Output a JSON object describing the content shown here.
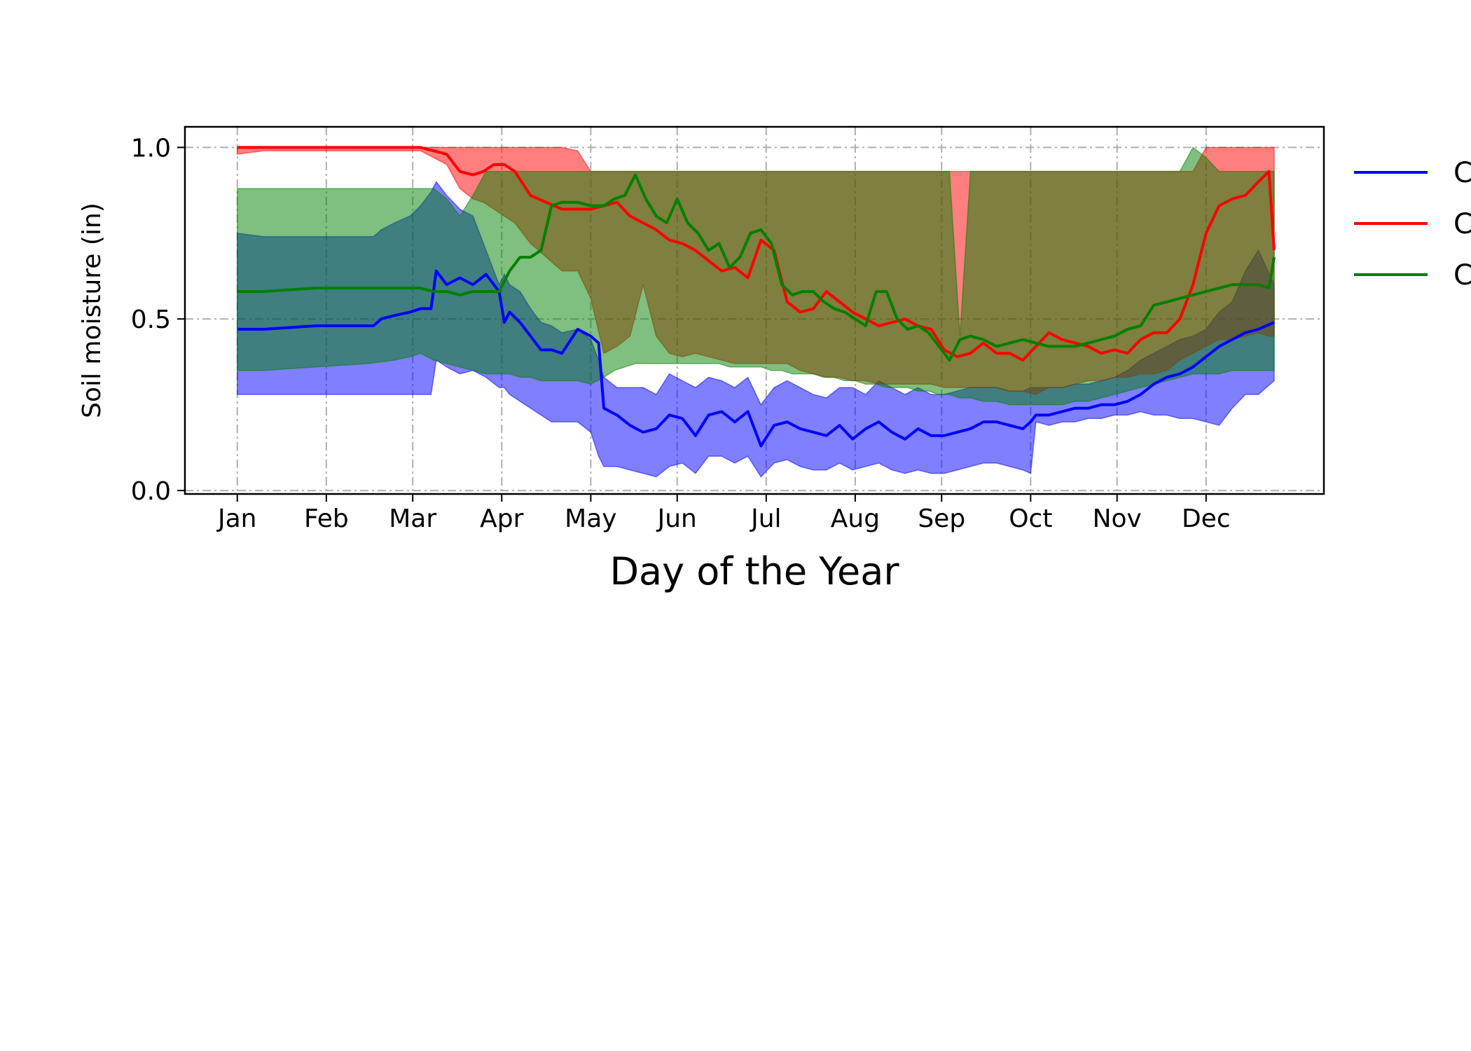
{
  "chart_data": {
    "type": "area",
    "title": "",
    "xlabel": "Day of the Year",
    "ylabel": "Soil moisture (in)",
    "xlim": [
      -20,
      415
    ],
    "ylim": [
      -0.01,
      1.06
    ],
    "grid": true,
    "legend_position": "right, partially cropped",
    "y_ticks": [
      0.0,
      0.5,
      1.0
    ],
    "y_tick_labels": [
      "0.0",
      "0.5",
      "1.0"
    ],
    "x_tick_days": [
      0,
      34,
      67,
      101,
      135,
      168,
      202,
      236,
      269,
      303,
      336,
      370
    ],
    "x_tick_labels": [
      "Jan",
      "Feb",
      "Mar",
      "Apr",
      "May",
      "Jun",
      "Jul",
      "Aug",
      "Sep",
      "Oct",
      "Nov",
      "Dec"
    ],
    "series": [
      {
        "name": "C",
        "color": "#0000ff",
        "x": [
          0,
          10,
          30,
          50,
          52,
          55,
          60,
          66,
          70,
          74,
          76,
          80,
          85,
          90,
          95,
          100,
          102,
          104,
          108,
          112,
          116,
          120,
          124,
          130,
          135,
          138,
          140,
          145,
          150,
          155,
          160,
          165,
          170,
          175,
          180,
          185,
          190,
          195,
          200,
          205,
          210,
          215,
          220,
          225,
          230,
          235,
          240,
          245,
          250,
          255,
          260,
          265,
          270,
          275,
          280,
          285,
          290,
          295,
          300,
          303,
          305,
          310,
          315,
          320,
          325,
          330,
          335,
          340,
          345,
          350,
          355,
          360,
          365,
          370,
          375,
          380,
          385,
          390,
          396
        ],
        "mean": [
          0.47,
          0.47,
          0.48,
          0.48,
          0.48,
          0.5,
          0.51,
          0.52,
          0.53,
          0.53,
          0.64,
          0.6,
          0.62,
          0.6,
          0.63,
          0.58,
          0.49,
          0.52,
          0.49,
          0.45,
          0.41,
          0.41,
          0.4,
          0.47,
          0.45,
          0.43,
          0.24,
          0.22,
          0.19,
          0.17,
          0.18,
          0.22,
          0.21,
          0.16,
          0.22,
          0.23,
          0.2,
          0.23,
          0.13,
          0.19,
          0.2,
          0.18,
          0.17,
          0.16,
          0.19,
          0.15,
          0.18,
          0.2,
          0.17,
          0.15,
          0.18,
          0.16,
          0.16,
          0.17,
          0.18,
          0.2,
          0.2,
          0.19,
          0.18,
          0.2,
          0.22,
          0.22,
          0.23,
          0.24,
          0.24,
          0.25,
          0.25,
          0.26,
          0.28,
          0.31,
          0.33,
          0.34,
          0.36,
          0.39,
          0.42,
          0.44,
          0.46,
          0.47,
          0.49
        ],
        "upper": [
          0.75,
          0.74,
          0.74,
          0.74,
          0.74,
          0.76,
          0.78,
          0.8,
          0.83,
          0.87,
          0.9,
          0.86,
          0.82,
          0.8,
          0.7,
          0.6,
          0.63,
          0.6,
          0.58,
          0.53,
          0.49,
          0.48,
          0.46,
          0.47,
          0.44,
          0.38,
          0.33,
          0.3,
          0.3,
          0.3,
          0.28,
          0.34,
          0.32,
          0.3,
          0.33,
          0.32,
          0.3,
          0.33,
          0.25,
          0.3,
          0.32,
          0.3,
          0.28,
          0.27,
          0.3,
          0.3,
          0.28,
          0.32,
          0.3,
          0.28,
          0.3,
          0.28,
          0.28,
          0.29,
          0.3,
          0.3,
          0.3,
          0.29,
          0.29,
          0.3,
          0.3,
          0.3,
          0.3,
          0.31,
          0.31,
          0.32,
          0.33,
          0.35,
          0.38,
          0.4,
          0.42,
          0.44,
          0.45,
          0.47,
          0.52,
          0.55,
          0.64,
          0.7,
          0.6
        ],
        "lower": [
          0.28,
          0.28,
          0.28,
          0.28,
          0.28,
          0.28,
          0.28,
          0.28,
          0.28,
          0.28,
          0.38,
          0.36,
          0.34,
          0.35,
          0.33,
          0.3,
          0.3,
          0.28,
          0.26,
          0.24,
          0.22,
          0.2,
          0.2,
          0.2,
          0.17,
          0.1,
          0.07,
          0.07,
          0.06,
          0.05,
          0.04,
          0.07,
          0.08,
          0.05,
          0.1,
          0.1,
          0.08,
          0.1,
          0.04,
          0.08,
          0.09,
          0.07,
          0.06,
          0.06,
          0.08,
          0.06,
          0.07,
          0.08,
          0.06,
          0.05,
          0.06,
          0.05,
          0.05,
          0.06,
          0.07,
          0.08,
          0.08,
          0.07,
          0.06,
          0.05,
          0.2,
          0.19,
          0.2,
          0.2,
          0.21,
          0.21,
          0.22,
          0.22,
          0.23,
          0.22,
          0.22,
          0.21,
          0.21,
          0.2,
          0.19,
          0.24,
          0.28,
          0.28,
          0.32
        ]
      },
      {
        "name": "C",
        "color": "#ff0000",
        "x": [
          0,
          10,
          30,
          50,
          70,
          80,
          85,
          90,
          94,
          98,
          102,
          106,
          112,
          118,
          124,
          130,
          135,
          140,
          145,
          150,
          155,
          160,
          165,
          170,
          175,
          180,
          185,
          190,
          195,
          200,
          205,
          210,
          215,
          220,
          225,
          230,
          235,
          240,
          245,
          250,
          255,
          260,
          265,
          270,
          275,
          280,
          285,
          290,
          295,
          300,
          305,
          310,
          315,
          320,
          325,
          330,
          335,
          340,
          345,
          350,
          355,
          360,
          365,
          370,
          375,
          380,
          385,
          390,
          394,
          396
        ],
        "mean": [
          1.0,
          1.0,
          1.0,
          1.0,
          1.0,
          0.98,
          0.93,
          0.92,
          0.93,
          0.95,
          0.95,
          0.93,
          0.86,
          0.84,
          0.82,
          0.82,
          0.82,
          0.83,
          0.84,
          0.8,
          0.78,
          0.76,
          0.73,
          0.72,
          0.7,
          0.67,
          0.64,
          0.65,
          0.62,
          0.73,
          0.7,
          0.55,
          0.52,
          0.53,
          0.58,
          0.55,
          0.52,
          0.5,
          0.48,
          0.49,
          0.5,
          0.48,
          0.47,
          0.41,
          0.39,
          0.4,
          0.43,
          0.4,
          0.4,
          0.38,
          0.42,
          0.46,
          0.44,
          0.43,
          0.42,
          0.4,
          0.41,
          0.4,
          0.44,
          0.46,
          0.46,
          0.5,
          0.6,
          0.75,
          0.83,
          0.85,
          0.86,
          0.9,
          0.93,
          0.7
        ],
        "upper": [
          1.0,
          1.0,
          1.0,
          1.0,
          1.0,
          1.0,
          1.0,
          1.0,
          1.0,
          1.0,
          1.0,
          1.0,
          1.0,
          1.0,
          1.0,
          0.99,
          0.93,
          0.93,
          0.93,
          0.93,
          0.93,
          0.93,
          0.93,
          0.93,
          0.93,
          0.93,
          0.93,
          0.93,
          0.93,
          0.93,
          0.93,
          0.93,
          0.93,
          0.93,
          0.93,
          0.93,
          0.93,
          0.93,
          0.93,
          0.93,
          0.93,
          0.93,
          0.93,
          0.93,
          0.93,
          0.93,
          0.93,
          0.93,
          0.93,
          0.93,
          0.93,
          0.93,
          0.93,
          0.93,
          0.93,
          0.93,
          0.93,
          0.93,
          0.93,
          0.93,
          0.93,
          0.93,
          0.93,
          1.0,
          1.0,
          1.0,
          1.0,
          1.0,
          1.0,
          1.0
        ],
        "lower": [
          0.98,
          0.99,
          0.99,
          0.99,
          0.99,
          0.95,
          0.88,
          0.85,
          0.84,
          0.82,
          0.8,
          0.78,
          0.72,
          0.68,
          0.64,
          0.64,
          0.56,
          0.4,
          0.42,
          0.45,
          0.6,
          0.45,
          0.4,
          0.39,
          0.4,
          0.39,
          0.38,
          0.37,
          0.37,
          0.37,
          0.37,
          0.37,
          0.35,
          0.34,
          0.33,
          0.33,
          0.32,
          0.32,
          0.31,
          0.31,
          0.31,
          0.31,
          0.31,
          0.3,
          0.3,
          0.3,
          0.3,
          0.3,
          0.29,
          0.29,
          0.28,
          0.3,
          0.3,
          0.31,
          0.32,
          0.32,
          0.33,
          0.33,
          0.34,
          0.34,
          0.35,
          0.38,
          0.4,
          0.42,
          0.44,
          0.44,
          0.45,
          0.46,
          0.45,
          0.45
        ]
      },
      {
        "name": "C",
        "color": "#008000",
        "x": [
          0,
          10,
          30,
          50,
          60,
          66,
          70,
          75,
          80,
          85,
          90,
          95,
          100,
          104,
          108,
          112,
          116,
          120,
          124,
          130,
          135,
          140,
          144,
          148,
          152,
          156,
          160,
          164,
          168,
          172,
          176,
          180,
          184,
          188,
          192,
          196,
          200,
          204,
          208,
          212,
          216,
          220,
          224,
          228,
          232,
          236,
          240,
          244,
          248,
          252,
          256,
          260,
          264,
          268,
          272,
          276,
          280,
          285,
          290,
          295,
          300,
          305,
          310,
          315,
          320,
          325,
          330,
          335,
          340,
          345,
          350,
          355,
          360,
          365,
          370,
          375,
          380,
          385,
          390,
          394,
          396
        ],
        "mean": [
          0.58,
          0.58,
          0.59,
          0.59,
          0.59,
          0.59,
          0.59,
          0.58,
          0.58,
          0.57,
          0.58,
          0.58,
          0.58,
          0.64,
          0.68,
          0.68,
          0.7,
          0.83,
          0.84,
          0.84,
          0.83,
          0.83,
          0.85,
          0.86,
          0.92,
          0.85,
          0.8,
          0.78,
          0.85,
          0.78,
          0.75,
          0.7,
          0.72,
          0.65,
          0.68,
          0.75,
          0.76,
          0.72,
          0.6,
          0.57,
          0.58,
          0.58,
          0.55,
          0.53,
          0.52,
          0.5,
          0.48,
          0.58,
          0.58,
          0.5,
          0.47,
          0.48,
          0.46,
          0.42,
          0.38,
          0.44,
          0.45,
          0.44,
          0.42,
          0.43,
          0.44,
          0.43,
          0.42,
          0.42,
          0.42,
          0.43,
          0.44,
          0.45,
          0.47,
          0.48,
          0.54,
          0.55,
          0.56,
          0.57,
          0.58,
          0.59,
          0.6,
          0.6,
          0.6,
          0.59,
          0.68
        ],
        "upper": [
          0.88,
          0.88,
          0.88,
          0.88,
          0.88,
          0.88,
          0.88,
          0.88,
          0.85,
          0.8,
          0.86,
          0.93,
          0.93,
          0.93,
          0.93,
          0.93,
          0.93,
          0.93,
          0.93,
          0.93,
          0.93,
          0.93,
          0.93,
          0.93,
          0.93,
          0.93,
          0.93,
          0.93,
          0.93,
          0.93,
          0.93,
          0.93,
          0.93,
          0.93,
          0.93,
          0.93,
          0.93,
          0.93,
          0.93,
          0.93,
          0.93,
          0.93,
          0.93,
          0.93,
          0.93,
          0.93,
          0.93,
          0.93,
          0.93,
          0.93,
          0.93,
          0.93,
          0.93,
          0.93,
          0.93,
          0.45,
          0.93,
          0.93,
          0.93,
          0.93,
          0.93,
          0.93,
          0.93,
          0.93,
          0.93,
          0.93,
          0.93,
          0.93,
          0.93,
          0.93,
          0.93,
          0.93,
          0.93,
          1.0,
          0.97,
          0.93,
          0.93,
          0.93,
          0.93,
          0.93,
          0.93
        ],
        "lower": [
          0.35,
          0.35,
          0.36,
          0.37,
          0.38,
          0.39,
          0.4,
          0.38,
          0.37,
          0.36,
          0.35,
          0.34,
          0.34,
          0.34,
          0.33,
          0.33,
          0.32,
          0.32,
          0.32,
          0.32,
          0.31,
          0.33,
          0.35,
          0.36,
          0.37,
          0.37,
          0.37,
          0.37,
          0.37,
          0.37,
          0.37,
          0.37,
          0.37,
          0.36,
          0.36,
          0.36,
          0.36,
          0.35,
          0.35,
          0.34,
          0.34,
          0.34,
          0.33,
          0.33,
          0.32,
          0.32,
          0.31,
          0.31,
          0.3,
          0.3,
          0.3,
          0.29,
          0.29,
          0.28,
          0.28,
          0.27,
          0.27,
          0.26,
          0.26,
          0.25,
          0.25,
          0.25,
          0.25,
          0.25,
          0.26,
          0.26,
          0.27,
          0.28,
          0.29,
          0.3,
          0.31,
          0.32,
          0.33,
          0.34,
          0.34,
          0.34,
          0.35,
          0.35,
          0.35,
          0.35,
          0.35
        ]
      }
    ]
  }
}
